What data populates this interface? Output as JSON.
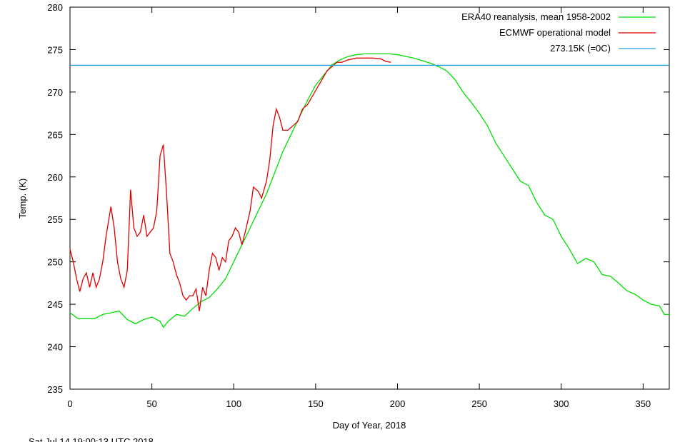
{
  "chart_data": {
    "type": "line",
    "x_label": "Day of Year, 2018",
    "y_label": "Temp. (K)",
    "footer": "Sat Jul 14 19:00:13 UTC 2018",
    "legend": "top-right",
    "xlim": [
      0,
      366
    ],
    "ylim": [
      235,
      280
    ],
    "xticks": [
      0,
      50,
      100,
      150,
      200,
      250,
      300,
      350
    ],
    "yticks": [
      235,
      240,
      245,
      250,
      255,
      260,
      265,
      270,
      275,
      280
    ],
    "hlines": [
      {
        "name": "273.15K (=0C)",
        "color": "#1f9fd6",
        "value": 273.15
      }
    ],
    "series": [
      {
        "name": "ERA40 reanalysis, mean 1958-2002",
        "color": "#00e000",
        "x": [
          0,
          5,
          10,
          15,
          20,
          25,
          30,
          35,
          40,
          45,
          50,
          55,
          57,
          60,
          65,
          70,
          75,
          80,
          85,
          90,
          95,
          100,
          105,
          110,
          115,
          120,
          125,
          130,
          135,
          140,
          145,
          150,
          155,
          160,
          165,
          170,
          175,
          180,
          185,
          190,
          195,
          200,
          205,
          210,
          215,
          220,
          225,
          230,
          235,
          240,
          245,
          250,
          255,
          260,
          265,
          270,
          275,
          280,
          285,
          290,
          295,
          300,
          305,
          310,
          315,
          320,
          325,
          330,
          335,
          340,
          345,
          350,
          355,
          360,
          363,
          366
        ],
        "values": [
          244,
          243.3,
          243.3,
          243.3,
          243.8,
          244,
          244.2,
          243.2,
          242.7,
          243.2,
          243.5,
          243,
          242.3,
          243,
          243.8,
          243.6,
          244.5,
          245.3,
          245.8,
          246.8,
          248,
          250,
          252,
          254,
          256,
          258,
          260.5,
          263,
          265,
          267,
          269,
          270.8,
          272,
          273.2,
          273.8,
          274.2,
          274.4,
          274.5,
          274.5,
          274.5,
          274.5,
          274.4,
          274.2,
          274,
          273.7,
          273.4,
          273,
          272.5,
          271.5,
          270,
          268.8,
          267.5,
          266,
          264,
          262.5,
          261,
          259.5,
          259,
          257,
          255.5,
          255,
          253,
          251.5,
          249.8,
          250.4,
          250,
          248.5,
          248.3,
          247.5,
          246.6,
          246.2,
          245.5,
          245,
          244.8,
          243.8,
          243.8
        ]
      },
      {
        "name": "ECMWF operational model",
        "color": "#e00000",
        "x": [
          0,
          2,
          4,
          6,
          8,
          10,
          12,
          14,
          16,
          18,
          20,
          22,
          25,
          27,
          29,
          31,
          33,
          35,
          37,
          39,
          41,
          43,
          45,
          47,
          49,
          51,
          53,
          55,
          57,
          59,
          61,
          63,
          65,
          67,
          69,
          71,
          73,
          75,
          77,
          79,
          81,
          83,
          85,
          87,
          89,
          91,
          93,
          95,
          97,
          99,
          101,
          103,
          105,
          107,
          110,
          112,
          115,
          117,
          120,
          122,
          124,
          126,
          128,
          130,
          133,
          136,
          139,
          142,
          145,
          148,
          151,
          154,
          157,
          160,
          163,
          166,
          170,
          175,
          180,
          185,
          190,
          193,
          196
        ],
        "values": [
          251.5,
          250,
          248,
          246.5,
          248,
          248.7,
          247,
          248.7,
          247,
          248,
          250,
          253,
          256.5,
          254,
          250,
          248,
          247,
          249,
          258.5,
          254,
          253,
          253.5,
          255.5,
          253,
          253.5,
          254,
          256,
          262.5,
          263.8,
          258,
          251,
          250,
          248.5,
          247.5,
          246,
          245.5,
          246,
          246,
          246.8,
          244.2,
          247,
          246,
          249,
          251,
          250.5,
          249,
          250.5,
          250,
          252.5,
          253,
          254,
          253.5,
          252,
          253.5,
          256,
          258.8,
          258.3,
          257.5,
          259.5,
          262,
          266,
          268,
          267,
          265.5,
          265.5,
          266,
          266.5,
          268,
          268.5,
          269.5,
          270.5,
          271.5,
          272.5,
          273,
          273.5,
          273.5,
          273.8,
          274,
          274,
          274,
          273.9,
          273.6,
          273.5
        ]
      }
    ]
  }
}
